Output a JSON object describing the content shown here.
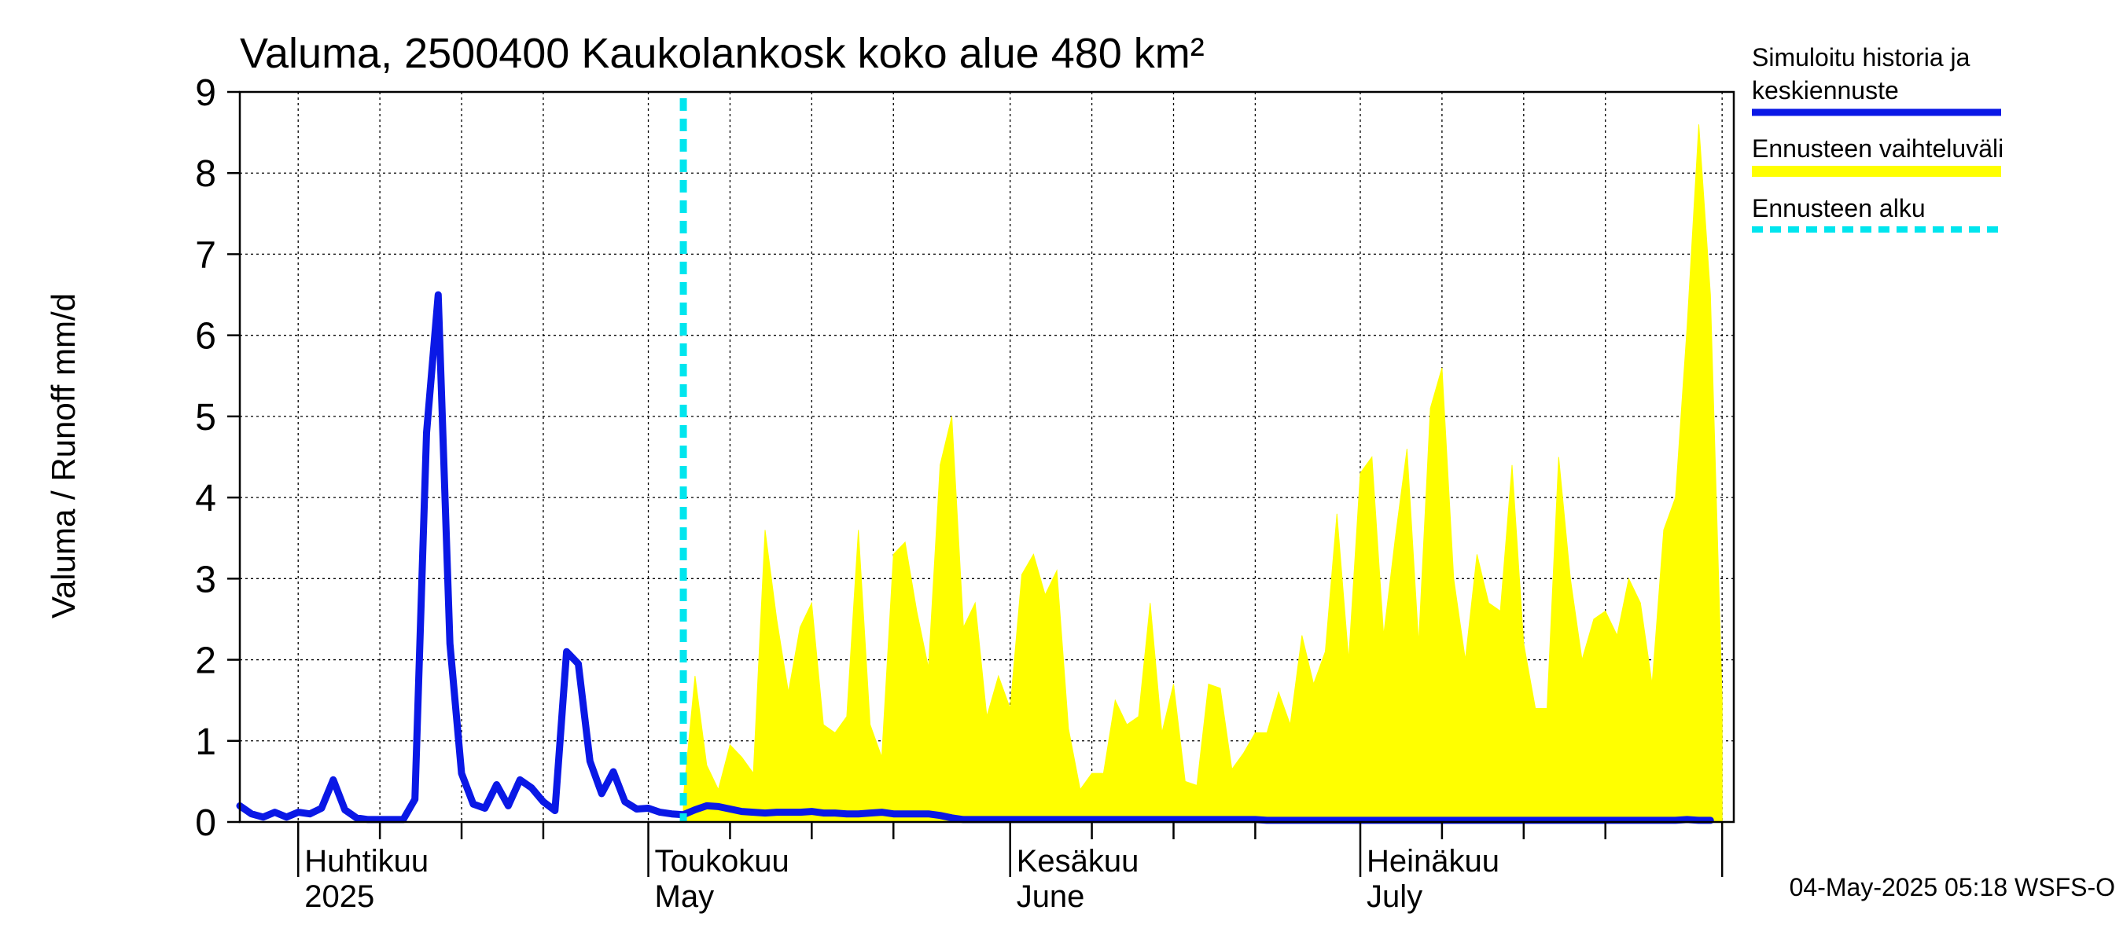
{
  "chart_data": {
    "type": "area",
    "title": "Valuma, 2500400 Kaukolankosk koko alue 480 km²",
    "ylabel": "Valuma / Runoff     mm/d",
    "xlabel": "",
    "ylim": [
      0,
      9
    ],
    "yticks": [
      0,
      1,
      2,
      3,
      4,
      5,
      6,
      7,
      8,
      9
    ],
    "x_start": "2025-03-27",
    "x_end": "2025-08-02",
    "forecast_start": "2025-05-04",
    "month_labels": [
      {
        "date": "2025-04-01",
        "fi": "Huhtikuu",
        "en": "2025"
      },
      {
        "date": "2025-05-01",
        "fi": "Toukokuu",
        "en": "May"
      },
      {
        "date": "2025-06-01",
        "fi": "Kesäkuu",
        "en": "June"
      },
      {
        "date": "2025-07-01",
        "fi": "Heinäkuu",
        "en": "July"
      }
    ],
    "series": [
      {
        "name": "Simuloitu historia ja keskiennuste",
        "color": "#0a18e6",
        "start": "2025-03-27",
        "values": [
          0.2,
          0.1,
          0.06,
          0.12,
          0.06,
          0.12,
          0.1,
          0.17,
          0.52,
          0.15,
          0.05,
          0.03,
          0.03,
          0.03,
          0.03,
          0.28,
          4.8,
          6.5,
          2.2,
          0.6,
          0.22,
          0.17,
          0.46,
          0.2,
          0.52,
          0.42,
          0.25,
          0.14,
          2.1,
          1.95,
          0.75,
          0.35,
          0.62,
          0.25,
          0.16,
          0.17,
          0.12,
          0.1,
          0.09,
          0.15,
          0.2,
          0.19,
          0.16,
          0.13,
          0.12,
          0.11,
          0.12,
          0.12,
          0.12,
          0.13,
          0.11,
          0.11,
          0.1,
          0.1,
          0.11,
          0.12,
          0.1,
          0.1,
          0.1,
          0.1,
          0.08,
          0.05,
          0.03,
          0.03,
          0.03,
          0.03,
          0.03,
          0.03,
          0.03,
          0.03,
          0.03,
          0.03,
          0.03,
          0.03,
          0.03,
          0.03,
          0.03,
          0.03,
          0.03,
          0.03,
          0.03,
          0.03,
          0.03,
          0.03,
          0.03,
          0.03,
          0.03,
          0.03,
          0.02,
          0.02,
          0.02,
          0.02,
          0.02,
          0.02,
          0.02,
          0.02,
          0.02,
          0.02,
          0.02,
          0.02,
          0.02,
          0.02,
          0.02,
          0.02,
          0.02,
          0.02,
          0.02,
          0.02,
          0.02,
          0.02,
          0.02,
          0.02,
          0.02,
          0.02,
          0.02,
          0.02,
          0.02,
          0.02,
          0.02,
          0.02,
          0.02,
          0.02,
          0.02,
          0.02,
          0.03,
          0.02,
          0.02
        ]
      },
      {
        "name": "Ennusteen vaihteluväli",
        "color": "#ffff00",
        "start": "2025-05-04",
        "lower": [
          0.0,
          0.0,
          0.0,
          0.0,
          0.0,
          0.0,
          0.0,
          0.0,
          0.0,
          0.0,
          0.0,
          0.0,
          0.0,
          0.0,
          0.0,
          0.0,
          0.0,
          0.0,
          0.0,
          0.0,
          0.0,
          0.0,
          0.0,
          0.0,
          0.0,
          0.0,
          0.0,
          0.0,
          0.0,
          0.0,
          0.0,
          0.0,
          0.0,
          0.0,
          0.0,
          0.0,
          0.0,
          0.0,
          0.0,
          0.0,
          0.0,
          0.0,
          0.0,
          0.0,
          0.0,
          0.0,
          0.0,
          0.0,
          0.0,
          0.0,
          0.0,
          0.0,
          0.0,
          0.0,
          0.0,
          0.0,
          0.0,
          0.0,
          0.0,
          0.0,
          0.0,
          0.0,
          0.0,
          0.0,
          0.0,
          0.0,
          0.0,
          0.0,
          0.0,
          0.0,
          0.0,
          0.0,
          0.0,
          0.0,
          0.0,
          0.0,
          0.0,
          0.0,
          0.0,
          0.0,
          0.0,
          0.0,
          0.0,
          0.0,
          0.0,
          0.0,
          0.0,
          0.0,
          0.0,
          0.0
        ],
        "upper": [
          0.3,
          1.8,
          0.7,
          0.4,
          0.95,
          0.8,
          0.6,
          3.6,
          2.5,
          1.6,
          2.4,
          2.7,
          1.2,
          1.1,
          1.3,
          3.6,
          1.2,
          0.8,
          3.3,
          3.45,
          2.6,
          1.9,
          4.4,
          5.0,
          2.4,
          2.7,
          1.3,
          1.8,
          1.4,
          3.05,
          3.3,
          2.8,
          3.1,
          1.15,
          0.4,
          0.6,
          0.6,
          1.5,
          1.2,
          1.3,
          2.7,
          1.1,
          1.7,
          0.5,
          0.45,
          1.7,
          1.65,
          0.65,
          0.85,
          1.1,
          1.1,
          1.6,
          1.2,
          2.3,
          1.7,
          2.1,
          3.8,
          2.0,
          4.3,
          4.5,
          2.3,
          3.5,
          4.6,
          2.2,
          5.1,
          5.6,
          3.0,
          2.0,
          3.3,
          2.7,
          2.6,
          4.4,
          2.2,
          1.4,
          1.4,
          4.5,
          3.0,
          2.0,
          2.5,
          2.6,
          2.3,
          3.0,
          2.7,
          1.7,
          3.6,
          4.0,
          6.1,
          8.6,
          6.5,
          1.5
        ]
      },
      {
        "name": "Ennusteen alku",
        "color": "#00e5ee",
        "style": "dashed"
      }
    ]
  },
  "legend": {
    "hist_line1": "Simuloitu historia ja",
    "hist_line2": "keskiennuste",
    "range": "Ennusteen vaihteluväli",
    "start": "Ennusteen alku"
  },
  "footer": "04-May-2025 05:18 WSFS-O"
}
